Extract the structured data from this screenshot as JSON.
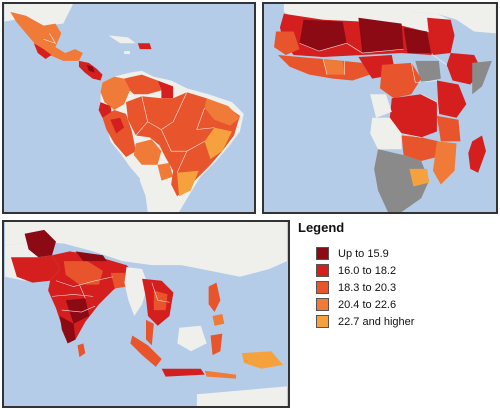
{
  "legend": {
    "title": "Legend",
    "items": [
      {
        "label": "Up to 15.9",
        "color": "#8b0a14"
      },
      {
        "label": "16.0 to 18.2",
        "color": "#d51f1f"
      },
      {
        "label": "18.3 to 20.3",
        "color": "#e8552d"
      },
      {
        "label": "20.4 to 22.6",
        "color": "#f07a38"
      },
      {
        "label": "22.7 and higher",
        "color": "#f5a23e"
      }
    ]
  },
  "colors": {
    "water": "#b4cce8",
    "land_outside": "#efefec",
    "no_data": "#8a8a8a",
    "boundary": "#ffffff",
    "frame": "#333333"
  }
}
